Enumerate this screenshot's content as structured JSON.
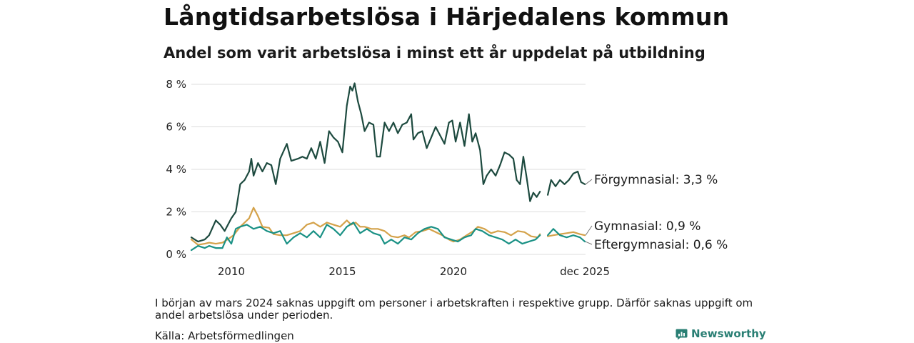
{
  "colors": {
    "forgymnasial": "#1d4a3f",
    "gymnasial": "#d4a24a",
    "eftergymnasial": "#1a9185",
    "grid": "#dddddd",
    "brand": "#2a7f74"
  },
  "header": {
    "title": "Långtidsarbetslösa i Härjedalens kommun",
    "subtitle": "Andel som varit arbetslösa i minst ett år uppdelat på utbildning"
  },
  "footer": {
    "note": "I början av mars 2024 saknas uppgift om personer i arbetskraften i respektive grupp. Därför saknas uppgift om andel arbetslösa under perioden.",
    "source": "Källa: Arbetsförmedlingen",
    "brand": "Newsworthy",
    "brand_icon": "newsworthy-logo-icon"
  },
  "chart_data": {
    "type": "line",
    "title": "Långtidsarbetslösa i Härjedalens kommun",
    "subtitle": "Andel som varit arbetslösa i minst ett år uppdelat på utbildning",
    "xlabel": "",
    "ylabel": "",
    "xlim": [
      2008.2,
      2025.95
    ],
    "ylim": [
      0,
      8
    ],
    "grid": true,
    "y_ticks": [
      {
        "value": 0,
        "label": "0 %"
      },
      {
        "value": 2,
        "label": "2 %"
      },
      {
        "value": 4,
        "label": "4 %"
      },
      {
        "value": 6,
        "label": "6 %"
      },
      {
        "value": 8,
        "label": "8 %"
      }
    ],
    "x_ticks": [
      {
        "value": 2010,
        "label": "2010"
      },
      {
        "value": 2015,
        "label": "2015"
      },
      {
        "value": 2020,
        "label": "2020"
      },
      {
        "value": 2025.92,
        "label": "dec 2025"
      }
    ],
    "gap": [
      2024.0,
      2024.25
    ],
    "series": [
      {
        "name": "Förgymnasial",
        "end_label": "Förgymnasial: 3,3 %",
        "color_key": "forgymnasial",
        "points": [
          [
            2008.2,
            0.8
          ],
          [
            2008.5,
            0.6
          ],
          [
            2008.8,
            0.7
          ],
          [
            2009.0,
            0.9
          ],
          [
            2009.3,
            1.6
          ],
          [
            2009.5,
            1.4
          ],
          [
            2009.7,
            1.1
          ],
          [
            2010.0,
            1.7
          ],
          [
            2010.2,
            2.0
          ],
          [
            2010.4,
            3.3
          ],
          [
            2010.6,
            3.5
          ],
          [
            2010.8,
            3.9
          ],
          [
            2010.9,
            4.5
          ],
          [
            2011.0,
            3.7
          ],
          [
            2011.2,
            4.3
          ],
          [
            2011.4,
            3.9
          ],
          [
            2011.6,
            4.3
          ],
          [
            2011.8,
            4.2
          ],
          [
            2012.0,
            3.3
          ],
          [
            2012.2,
            4.5
          ],
          [
            2012.5,
            5.2
          ],
          [
            2012.7,
            4.4
          ],
          [
            2013.0,
            4.5
          ],
          [
            2013.2,
            4.6
          ],
          [
            2013.4,
            4.5
          ],
          [
            2013.6,
            5.0
          ],
          [
            2013.8,
            4.5
          ],
          [
            2014.0,
            5.3
          ],
          [
            2014.2,
            4.3
          ],
          [
            2014.4,
            5.8
          ],
          [
            2014.6,
            5.5
          ],
          [
            2014.8,
            5.3
          ],
          [
            2015.0,
            4.8
          ],
          [
            2015.2,
            7.0
          ],
          [
            2015.35,
            7.9
          ],
          [
            2015.45,
            7.7
          ],
          [
            2015.55,
            8.05
          ],
          [
            2015.7,
            7.2
          ],
          [
            2015.85,
            6.6
          ],
          [
            2016.0,
            5.8
          ],
          [
            2016.2,
            6.2
          ],
          [
            2016.4,
            6.1
          ],
          [
            2016.55,
            4.6
          ],
          [
            2016.7,
            4.6
          ],
          [
            2016.9,
            6.2
          ],
          [
            2017.1,
            5.8
          ],
          [
            2017.3,
            6.2
          ],
          [
            2017.5,
            5.7
          ],
          [
            2017.7,
            6.1
          ],
          [
            2017.9,
            6.2
          ],
          [
            2018.1,
            6.6
          ],
          [
            2018.2,
            5.4
          ],
          [
            2018.4,
            5.7
          ],
          [
            2018.6,
            5.8
          ],
          [
            2018.8,
            5.0
          ],
          [
            2019.0,
            5.5
          ],
          [
            2019.2,
            6.0
          ],
          [
            2019.4,
            5.6
          ],
          [
            2019.6,
            5.2
          ],
          [
            2019.8,
            6.2
          ],
          [
            2019.95,
            6.3
          ],
          [
            2020.1,
            5.3
          ],
          [
            2020.3,
            6.2
          ],
          [
            2020.5,
            5.1
          ],
          [
            2020.7,
            6.6
          ],
          [
            2020.85,
            5.3
          ],
          [
            2021.0,
            5.7
          ],
          [
            2021.2,
            4.9
          ],
          [
            2021.35,
            3.3
          ],
          [
            2021.5,
            3.7
          ],
          [
            2021.7,
            4.0
          ],
          [
            2021.9,
            3.7
          ],
          [
            2022.1,
            4.2
          ],
          [
            2022.3,
            4.8
          ],
          [
            2022.5,
            4.7
          ],
          [
            2022.7,
            4.5
          ],
          [
            2022.85,
            3.5
          ],
          [
            2023.0,
            3.3
          ],
          [
            2023.15,
            4.6
          ],
          [
            2023.3,
            3.6
          ],
          [
            2023.45,
            2.5
          ],
          [
            2023.6,
            2.9
          ],
          [
            2023.75,
            2.7
          ],
          [
            2023.9,
            2.95
          ],
          [
            2024.25,
            2.8
          ],
          [
            2024.4,
            3.5
          ],
          [
            2024.6,
            3.2
          ],
          [
            2024.8,
            3.5
          ],
          [
            2025.0,
            3.3
          ],
          [
            2025.2,
            3.5
          ],
          [
            2025.4,
            3.8
          ],
          [
            2025.6,
            3.9
          ],
          [
            2025.75,
            3.4
          ],
          [
            2025.92,
            3.3
          ]
        ]
      },
      {
        "name": "Gymnasial",
        "end_label": "Gymnasial: 0,9 %",
        "color_key": "gymnasial",
        "points": [
          [
            2008.2,
            0.7
          ],
          [
            2008.5,
            0.45
          ],
          [
            2008.8,
            0.5
          ],
          [
            2009.0,
            0.55
          ],
          [
            2009.3,
            0.5
          ],
          [
            2009.6,
            0.55
          ],
          [
            2009.9,
            0.75
          ],
          [
            2010.1,
            0.9
          ],
          [
            2010.4,
            1.3
          ],
          [
            2010.6,
            1.5
          ],
          [
            2010.8,
            1.7
          ],
          [
            2011.0,
            2.2
          ],
          [
            2011.2,
            1.8
          ],
          [
            2011.4,
            1.3
          ],
          [
            2011.7,
            1.25
          ],
          [
            2011.9,
            0.95
          ],
          [
            2012.2,
            0.9
          ],
          [
            2012.5,
            0.9
          ],
          [
            2012.8,
            1.0
          ],
          [
            2013.1,
            1.1
          ],
          [
            2013.4,
            1.4
          ],
          [
            2013.7,
            1.5
          ],
          [
            2014.0,
            1.3
          ],
          [
            2014.3,
            1.5
          ],
          [
            2014.6,
            1.4
          ],
          [
            2014.9,
            1.3
          ],
          [
            2015.2,
            1.6
          ],
          [
            2015.4,
            1.4
          ],
          [
            2015.6,
            1.5
          ],
          [
            2015.8,
            1.3
          ],
          [
            2016.0,
            1.3
          ],
          [
            2016.3,
            1.2
          ],
          [
            2016.6,
            1.2
          ],
          [
            2016.9,
            1.1
          ],
          [
            2017.2,
            0.85
          ],
          [
            2017.5,
            0.8
          ],
          [
            2017.8,
            0.9
          ],
          [
            2018.0,
            0.8
          ],
          [
            2018.3,
            1.05
          ],
          [
            2018.6,
            1.1
          ],
          [
            2018.9,
            1.2
          ],
          [
            2019.2,
            1.05
          ],
          [
            2019.5,
            0.9
          ],
          [
            2019.8,
            0.7
          ],
          [
            2020.0,
            0.6
          ],
          [
            2020.3,
            0.7
          ],
          [
            2020.6,
            0.9
          ],
          [
            2020.9,
            1.1
          ],
          [
            2021.1,
            1.3
          ],
          [
            2021.4,
            1.2
          ],
          [
            2021.7,
            1.0
          ],
          [
            2022.0,
            1.1
          ],
          [
            2022.3,
            1.05
          ],
          [
            2022.6,
            0.9
          ],
          [
            2022.9,
            1.1
          ],
          [
            2023.2,
            1.05
          ],
          [
            2023.5,
            0.85
          ],
          [
            2023.8,
            0.8
          ],
          [
            2023.9,
            0.95
          ],
          [
            2024.25,
            0.85
          ],
          [
            2024.5,
            0.9
          ],
          [
            2024.8,
            0.95
          ],
          [
            2025.1,
            1.0
          ],
          [
            2025.4,
            1.05
          ],
          [
            2025.7,
            0.95
          ],
          [
            2025.92,
            0.9
          ]
        ]
      },
      {
        "name": "Eftergymnasial",
        "end_label": "Eftergymnasial: 0,6 %",
        "color_key": "eftergymnasial",
        "points": [
          [
            2008.2,
            0.2
          ],
          [
            2008.5,
            0.4
          ],
          [
            2008.8,
            0.3
          ],
          [
            2009.0,
            0.4
          ],
          [
            2009.3,
            0.3
          ],
          [
            2009.6,
            0.3
          ],
          [
            2009.8,
            0.8
          ],
          [
            2010.0,
            0.5
          ],
          [
            2010.2,
            1.2
          ],
          [
            2010.4,
            1.3
          ],
          [
            2010.7,
            1.4
          ],
          [
            2011.0,
            1.2
          ],
          [
            2011.3,
            1.3
          ],
          [
            2011.6,
            1.1
          ],
          [
            2011.9,
            1.0
          ],
          [
            2012.2,
            1.1
          ],
          [
            2012.5,
            0.5
          ],
          [
            2012.8,
            0.8
          ],
          [
            2013.1,
            1.0
          ],
          [
            2013.4,
            0.8
          ],
          [
            2013.7,
            1.1
          ],
          [
            2014.0,
            0.8
          ],
          [
            2014.3,
            1.4
          ],
          [
            2014.6,
            1.2
          ],
          [
            2014.9,
            0.9
          ],
          [
            2015.2,
            1.3
          ],
          [
            2015.5,
            1.5
          ],
          [
            2015.8,
            1.0
          ],
          [
            2016.1,
            1.2
          ],
          [
            2016.4,
            1.0
          ],
          [
            2016.7,
            0.9
          ],
          [
            2016.9,
            0.5
          ],
          [
            2017.2,
            0.7
          ],
          [
            2017.5,
            0.5
          ],
          [
            2017.8,
            0.8
          ],
          [
            2018.1,
            0.7
          ],
          [
            2018.4,
            1.0
          ],
          [
            2018.7,
            1.2
          ],
          [
            2019.0,
            1.3
          ],
          [
            2019.3,
            1.2
          ],
          [
            2019.6,
            0.8
          ],
          [
            2019.9,
            0.7
          ],
          [
            2020.2,
            0.6
          ],
          [
            2020.5,
            0.8
          ],
          [
            2020.8,
            0.9
          ],
          [
            2021.0,
            1.2
          ],
          [
            2021.3,
            1.1
          ],
          [
            2021.6,
            0.9
          ],
          [
            2021.9,
            0.8
          ],
          [
            2022.2,
            0.7
          ],
          [
            2022.5,
            0.5
          ],
          [
            2022.8,
            0.7
          ],
          [
            2023.1,
            0.5
          ],
          [
            2023.4,
            0.6
          ],
          [
            2023.7,
            0.7
          ],
          [
            2023.9,
            0.9
          ],
          [
            2024.25,
            0.9
          ],
          [
            2024.5,
            1.2
          ],
          [
            2024.8,
            0.9
          ],
          [
            2025.1,
            0.8
          ],
          [
            2025.4,
            0.9
          ],
          [
            2025.7,
            0.8
          ],
          [
            2025.92,
            0.6
          ]
        ]
      }
    ]
  }
}
